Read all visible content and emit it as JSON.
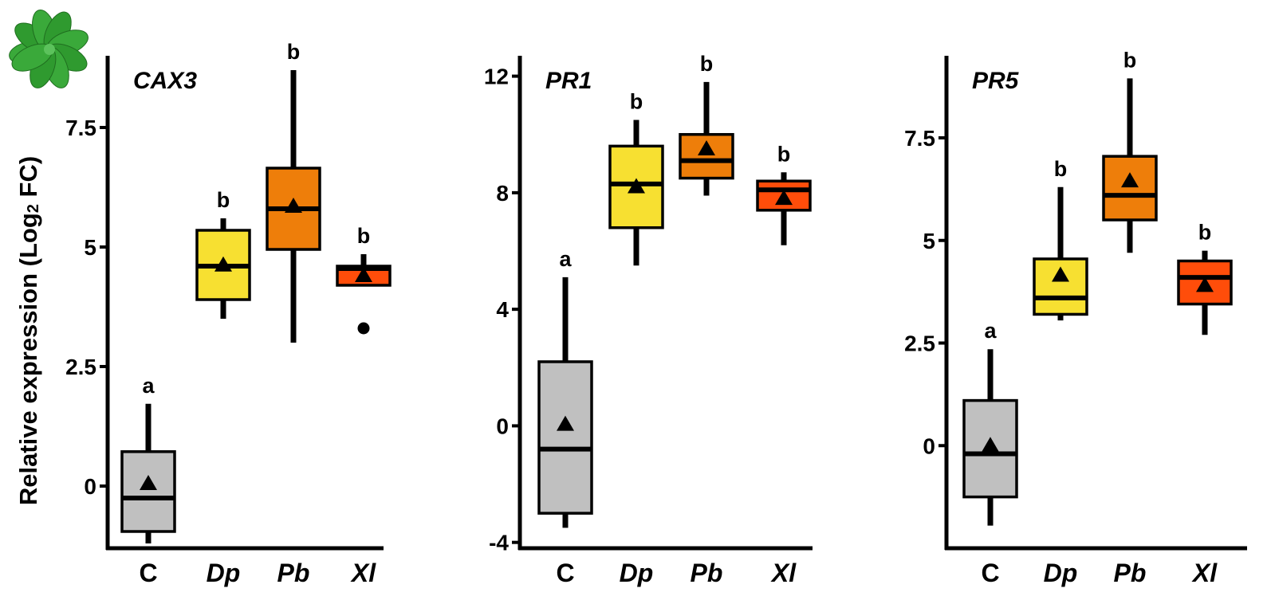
{
  "figure": {
    "ylabel_main": "Relative expression (Log",
    "ylabel_sub": "2",
    "ylabel_tail": " FC)"
  },
  "colors": {
    "C": "#c0c0c0",
    "Dp": "#f7e031",
    "Pb": "#ee7e0a",
    "Xl": "#ff4d0a",
    "plant": "#3aa93a"
  },
  "chart_data": [
    {
      "type": "box",
      "title": "CAX3",
      "categories": [
        "C",
        "Dp",
        "Pb",
        "Xl"
      ],
      "category_style": [
        "normal",
        "italic",
        "italic",
        "italic"
      ],
      "ylim": [
        -1.3,
        9.0
      ],
      "yticks": [
        0,
        2.5,
        5,
        7.5
      ],
      "ytick_labels": [
        "0",
        "2.5",
        "5",
        "7.5"
      ],
      "boxes": [
        {
          "whisker_low": -1.2,
          "q1": -0.95,
          "median": -0.25,
          "q3": 0.72,
          "whisker_high": 1.72,
          "mean": 0.05,
          "letter": "a",
          "outliers": []
        },
        {
          "whisker_low": 3.5,
          "q1": 3.9,
          "median": 4.6,
          "q3": 5.35,
          "whisker_high": 5.6,
          "mean": 4.62,
          "letter": "b",
          "outliers": []
        },
        {
          "whisker_low": 3.0,
          "q1": 4.95,
          "median": 5.8,
          "q3": 6.65,
          "whisker_high": 8.7,
          "mean": 5.85,
          "letter": "b",
          "outliers": []
        },
        {
          "whisker_low": 4.2,
          "q1": 4.2,
          "median": 4.55,
          "q3": 4.6,
          "whisker_high": 4.85,
          "mean": 4.4,
          "letter": "b",
          "outliers": [
            3.3
          ]
        }
      ]
    },
    {
      "type": "box",
      "title": "PR1",
      "categories": [
        "C",
        "Dp",
        "Pb",
        "Xl"
      ],
      "category_style": [
        "normal",
        "italic",
        "italic",
        "italic"
      ],
      "ylim": [
        -4.2,
        12.7
      ],
      "yticks": [
        -4,
        0,
        4,
        8,
        12
      ],
      "ytick_labels": [
        "-4",
        "0",
        "4",
        "8",
        "12"
      ],
      "boxes": [
        {
          "whisker_low": -3.5,
          "q1": -3.0,
          "median": -0.8,
          "q3": 2.2,
          "whisker_high": 5.1,
          "mean": 0.05,
          "letter": "a",
          "outliers": []
        },
        {
          "whisker_low": 5.5,
          "q1": 6.8,
          "median": 8.3,
          "q3": 9.6,
          "whisker_high": 10.5,
          "mean": 8.2,
          "letter": "b",
          "outliers": []
        },
        {
          "whisker_low": 7.9,
          "q1": 8.5,
          "median": 9.1,
          "q3": 10.0,
          "whisker_high": 11.8,
          "mean": 9.5,
          "letter": "b",
          "outliers": []
        },
        {
          "whisker_low": 6.2,
          "q1": 7.4,
          "median": 8.1,
          "q3": 8.4,
          "whisker_high": 8.7,
          "mean": 7.8,
          "letter": "b",
          "outliers": []
        }
      ]
    },
    {
      "type": "box",
      "title": "PR5",
      "categories": [
        "C",
        "Dp",
        "Pb",
        "Xl"
      ],
      "category_style": [
        "normal",
        "italic",
        "italic",
        "italic"
      ],
      "ylim": [
        -2.5,
        9.5
      ],
      "yticks": [
        0,
        2.5,
        5,
        7.5
      ],
      "ytick_labels": [
        "0",
        "2.5",
        "5",
        "7.5"
      ],
      "boxes": [
        {
          "whisker_low": -1.95,
          "q1": -1.25,
          "median": -0.2,
          "q3": 1.1,
          "whisker_high": 2.35,
          "mean": 0.0,
          "letter": "a",
          "outliers": []
        },
        {
          "whisker_low": 3.05,
          "q1": 3.2,
          "median": 3.6,
          "q3": 4.55,
          "whisker_high": 6.3,
          "mean": 4.15,
          "letter": "b",
          "outliers": []
        },
        {
          "whisker_low": 4.7,
          "q1": 5.5,
          "median": 6.1,
          "q3": 7.05,
          "whisker_high": 8.95,
          "mean": 6.45,
          "letter": "b",
          "outliers": []
        },
        {
          "whisker_low": 2.7,
          "q1": 3.45,
          "median": 4.1,
          "q3": 4.5,
          "whisker_high": 4.75,
          "mean": 3.9,
          "letter": "b",
          "outliers": []
        }
      ]
    }
  ]
}
